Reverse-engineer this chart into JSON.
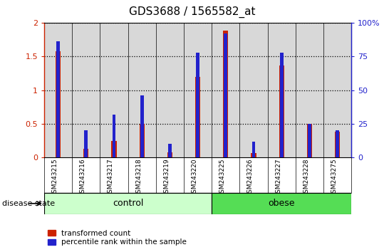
{
  "title": "GDS3688 / 1565582_at",
  "categories": [
    "GSM243215",
    "GSM243216",
    "GSM243217",
    "GSM243218",
    "GSM243219",
    "GSM243220",
    "GSM243225",
    "GSM243226",
    "GSM243227",
    "GSM243228",
    "GSM243275"
  ],
  "transformed_count": [
    1.58,
    0.13,
    0.25,
    0.5,
    0.08,
    1.2,
    1.88,
    0.07,
    1.36,
    0.5,
    0.38
  ],
  "percentile_rank_pct": [
    86,
    20,
    32,
    46,
    10,
    78,
    92,
    12,
    78,
    25,
    20
  ],
  "red_color": "#CC2200",
  "blue_color": "#2222CC",
  "control_count": 6,
  "control_label": "control",
  "obese_label": "obese",
  "disease_state_label": "disease state",
  "ylim_left": [
    0,
    2
  ],
  "ylim_right": [
    0,
    100
  ],
  "yticks_left": [
    0,
    0.5,
    1.0,
    1.5,
    2.0
  ],
  "ytick_labels_left": [
    "0",
    "0.5",
    "1",
    "1.5",
    "2"
  ],
  "yticks_right": [
    0,
    25,
    50,
    75,
    100
  ],
  "ytick_labels_right": [
    "0",
    "25",
    "50",
    "75",
    "100%"
  ],
  "red_bar_width": 0.18,
  "blue_bar_width": 0.12,
  "background_color": "#ffffff",
  "plot_bg_color": "#d8d8d8",
  "control_fill": "#ccffcc",
  "obese_fill": "#55dd55",
  "legend_transformed": "transformed count",
  "legend_percentile": "percentile rank within the sample"
}
